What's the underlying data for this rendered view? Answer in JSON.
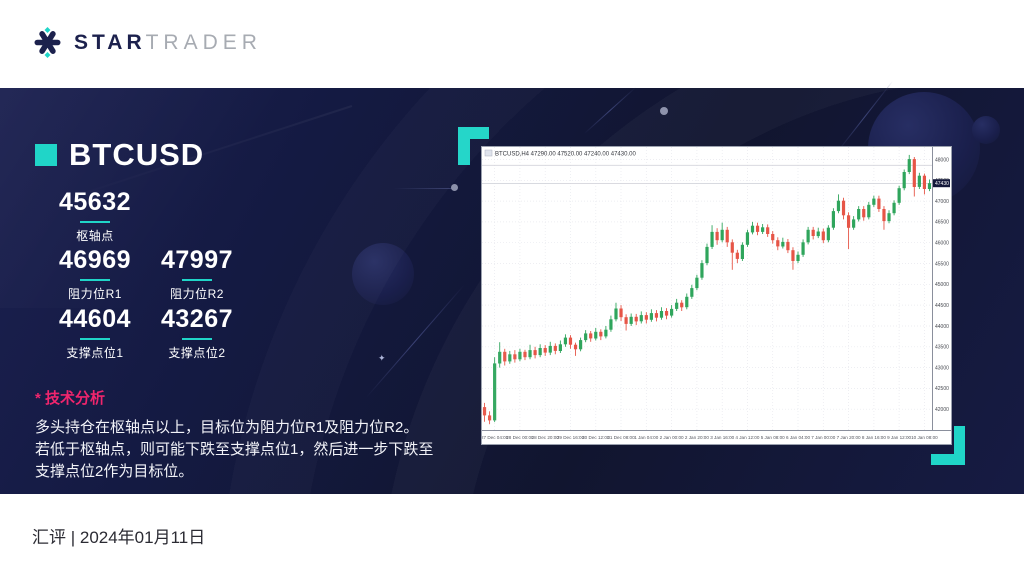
{
  "header": {
    "brand_part1": "STAR",
    "brand_part2": "TRADER",
    "logo_icon": "star-asterisk-icon"
  },
  "panel": {
    "symbol": "BTCUSD",
    "pivots": [
      {
        "value": "45632",
        "label": "枢轴点"
      },
      {
        "value": "46969",
        "label": "阻力位R1"
      },
      {
        "value": "47997",
        "label": "阻力位R2"
      },
      {
        "value": "44604",
        "label": "支撑点位1"
      },
      {
        "value": "43267",
        "label": "支撑点位2"
      }
    ],
    "analysis_title": "* 技术分析",
    "analysis_lines": [
      "多头持仓在枢轴点以上，目标位为阻力位R1及阻力位R2。",
      "若低于枢轴点，则可能下跌至支撑点位1，然后进一步下跌至",
      "支撑点位2作为目标位。"
    ]
  },
  "footer": {
    "text": "汇评 | 2024年01月11日"
  },
  "colors": {
    "accent_teal": "#20d5c8",
    "accent_pink": "#f0256d",
    "panel_navy": "#141a42",
    "candle_up": "#2fa55c",
    "candle_down": "#e65547"
  },
  "chart_data": {
    "type": "candlestick",
    "title": "BTCUSD,H4 47290.00 47520.00 47240.00 47430.00",
    "timeframe": "H4",
    "ylim": [
      41500,
      48300
    ],
    "y_ticks": [
      42000,
      42500,
      43000,
      43500,
      44000,
      44500,
      45000,
      45500,
      46000,
      46500,
      47000,
      47500,
      48000
    ],
    "levels": [
      47860,
      47420
    ],
    "current_price": "47430",
    "up_color": "#2fa55c",
    "down_color": "#e65547",
    "grid": true,
    "x_label_start": 2,
    "x_label_step": 5,
    "x_labels": [
      "27 Dec 04:00",
      "28 Dec 00:00",
      "28 Dec 20:00",
      "29 Dec 16:00",
      "30 Dec 12:00",
      "31 Dec 08:00",
      "1 Jan 04:00",
      "2 Jan 00:00",
      "2 Jan 20:00",
      "3 Jan 16:00",
      "4 Jan 12:00",
      "5 Jan 08:00",
      "6 Jan 04:00",
      "7 Jan 00:00",
      "7 Jan 20:00",
      "8 Jan 16:00",
      "9 Jan 12:00",
      "10 Jan 08:00"
    ],
    "candles": [
      [
        42050,
        42150,
        41700,
        41850
      ],
      [
        41850,
        41950,
        41640,
        41730
      ],
      [
        41730,
        43250,
        41690,
        43100
      ],
      [
        43100,
        43610,
        43000,
        43380
      ],
      [
        43380,
        43450,
        43050,
        43150
      ],
      [
        43150,
        43400,
        43090,
        43320
      ],
      [
        43320,
        43420,
        43120,
        43200
      ],
      [
        43200,
        43450,
        43150,
        43380
      ],
      [
        43380,
        43430,
        43180,
        43250
      ],
      [
        43250,
        43550,
        43200,
        43420
      ],
      [
        43420,
        43500,
        43220,
        43300
      ],
      [
        43300,
        43560,
        43250,
        43470
      ],
      [
        43470,
        43540,
        43280,
        43360
      ],
      [
        43360,
        43620,
        43300,
        43520
      ],
      [
        43520,
        43580,
        43320,
        43400
      ],
      [
        43400,
        43650,
        43350,
        43560
      ],
      [
        43560,
        43800,
        43500,
        43720
      ],
      [
        43720,
        43780,
        43450,
        43550
      ],
      [
        43550,
        43600,
        43280,
        43440
      ],
      [
        43440,
        43720,
        43390,
        43660
      ],
      [
        43660,
        43900,
        43610,
        43820
      ],
      [
        43820,
        43880,
        43620,
        43700
      ],
      [
        43700,
        43950,
        43650,
        43860
      ],
      [
        43860,
        43920,
        43660,
        43750
      ],
      [
        43750,
        44000,
        43700,
        43910
      ],
      [
        43910,
        44250,
        43860,
        44160
      ],
      [
        44160,
        44560,
        44110,
        44420
      ],
      [
        44420,
        44500,
        44120,
        44210
      ],
      [
        44210,
        44280,
        43890,
        44050
      ],
      [
        44050,
        44300,
        44000,
        44220
      ],
      [
        44220,
        44290,
        44020,
        44110
      ],
      [
        44110,
        44350,
        44060,
        44260
      ],
      [
        44260,
        44330,
        44060,
        44150
      ],
      [
        44150,
        44400,
        44100,
        44310
      ],
      [
        44310,
        44380,
        44110,
        44200
      ],
      [
        44200,
        44450,
        44150,
        44360
      ],
      [
        44360,
        44430,
        44160,
        44250
      ],
      [
        44250,
        44500,
        44200,
        44410
      ],
      [
        44410,
        44650,
        44360,
        44560
      ],
      [
        44560,
        44620,
        44360,
        44450
      ],
      [
        44450,
        44780,
        44400,
        44700
      ],
      [
        44700,
        44990,
        44650,
        44910
      ],
      [
        44910,
        45230,
        44860,
        45160
      ],
      [
        45160,
        45580,
        45110,
        45510
      ],
      [
        45510,
        45980,
        45460,
        45900
      ],
      [
        45900,
        46420,
        45850,
        46260
      ],
      [
        46260,
        46350,
        45950,
        46060
      ],
      [
        46060,
        46480,
        46010,
        46310
      ],
      [
        46310,
        46380,
        45900,
        46010
      ],
      [
        46010,
        46080,
        45350,
        45760
      ],
      [
        45760,
        45830,
        45510,
        45610
      ],
      [
        45610,
        46010,
        45560,
        45950
      ],
      [
        45950,
        46310,
        45900,
        46250
      ],
      [
        46250,
        46500,
        46200,
        46410
      ],
      [
        46410,
        46480,
        46180,
        46260
      ],
      [
        46260,
        46450,
        46210,
        46370
      ],
      [
        46370,
        46440,
        46140,
        46210
      ],
      [
        46210,
        46280,
        45980,
        46060
      ],
      [
        46060,
        46130,
        45820,
        45910
      ],
      [
        45910,
        46120,
        45860,
        46020
      ],
      [
        46020,
        46090,
        45750,
        45820
      ],
      [
        45820,
        45890,
        45350,
        45560
      ],
      [
        45560,
        45790,
        45510,
        45710
      ],
      [
        45710,
        46080,
        45660,
        46010
      ],
      [
        46010,
        46380,
        45960,
        46310
      ],
      [
        46310,
        46380,
        46080,
        46160
      ],
      [
        46160,
        46360,
        46110,
        46270
      ],
      [
        46270,
        46340,
        45990,
        46060
      ],
      [
        46060,
        46420,
        46010,
        46360
      ],
      [
        46360,
        46830,
        46310,
        46760
      ],
      [
        46760,
        47160,
        46710,
        47010
      ],
      [
        47010,
        47080,
        46560,
        46660
      ],
      [
        46660,
        46730,
        45850,
        46360
      ],
      [
        46360,
        46640,
        46310,
        46560
      ],
      [
        46560,
        46880,
        46510,
        46810
      ],
      [
        46810,
        46880,
        46530,
        46610
      ],
      [
        46610,
        46980,
        46560,
        46910
      ],
      [
        46910,
        47130,
        46860,
        47060
      ],
      [
        47060,
        47130,
        46740,
        46810
      ],
      [
        46810,
        46880,
        46310,
        46520
      ],
      [
        46520,
        46780,
        46470,
        46710
      ],
      [
        46710,
        47020,
        46660,
        46960
      ],
      [
        46960,
        47370,
        46910,
        47310
      ],
      [
        47310,
        47760,
        47260,
        47700
      ],
      [
        47700,
        48110,
        47650,
        48010
      ],
      [
        48010,
        48060,
        47110,
        47340
      ],
      [
        47340,
        47680,
        47290,
        47610
      ],
      [
        47610,
        47660,
        47160,
        47290
      ],
      [
        47290,
        47520,
        47240,
        47430
      ]
    ]
  }
}
